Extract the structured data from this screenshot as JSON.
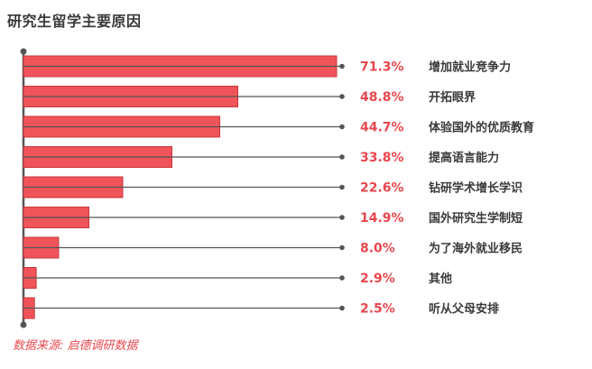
{
  "title": "研究生留学主要原因",
  "source": "数据来源: 启德调研数据",
  "colors": {
    "bar": "#f0545a",
    "bar_stroke": "#c8373d",
    "line": "#555555",
    "value_text": "#e8474e",
    "category_text": "#3a3a3a"
  },
  "chart_data": {
    "type": "bar",
    "orientation": "horizontal",
    "unit": "%",
    "xlim": [
      0,
      80
    ],
    "categories": [
      "增加就业竞争力",
      "开拓眼界",
      "体验国外的优质教育",
      "提高语言能力",
      "钻研学术增长学识",
      "国外研究生学制短",
      "为了海外就业移民",
      "其他",
      "听从父母安排"
    ],
    "values": [
      71.3,
      48.8,
      44.7,
      33.8,
      22.6,
      14.9,
      8.0,
      2.9,
      2.5
    ],
    "value_labels": [
      "71.3%",
      "48.8%",
      "44.7%",
      "33.8%",
      "22.6%",
      "14.9%",
      "8.0%",
      "2.9%",
      "2.5%"
    ],
    "grid": false,
    "legend": "none"
  }
}
